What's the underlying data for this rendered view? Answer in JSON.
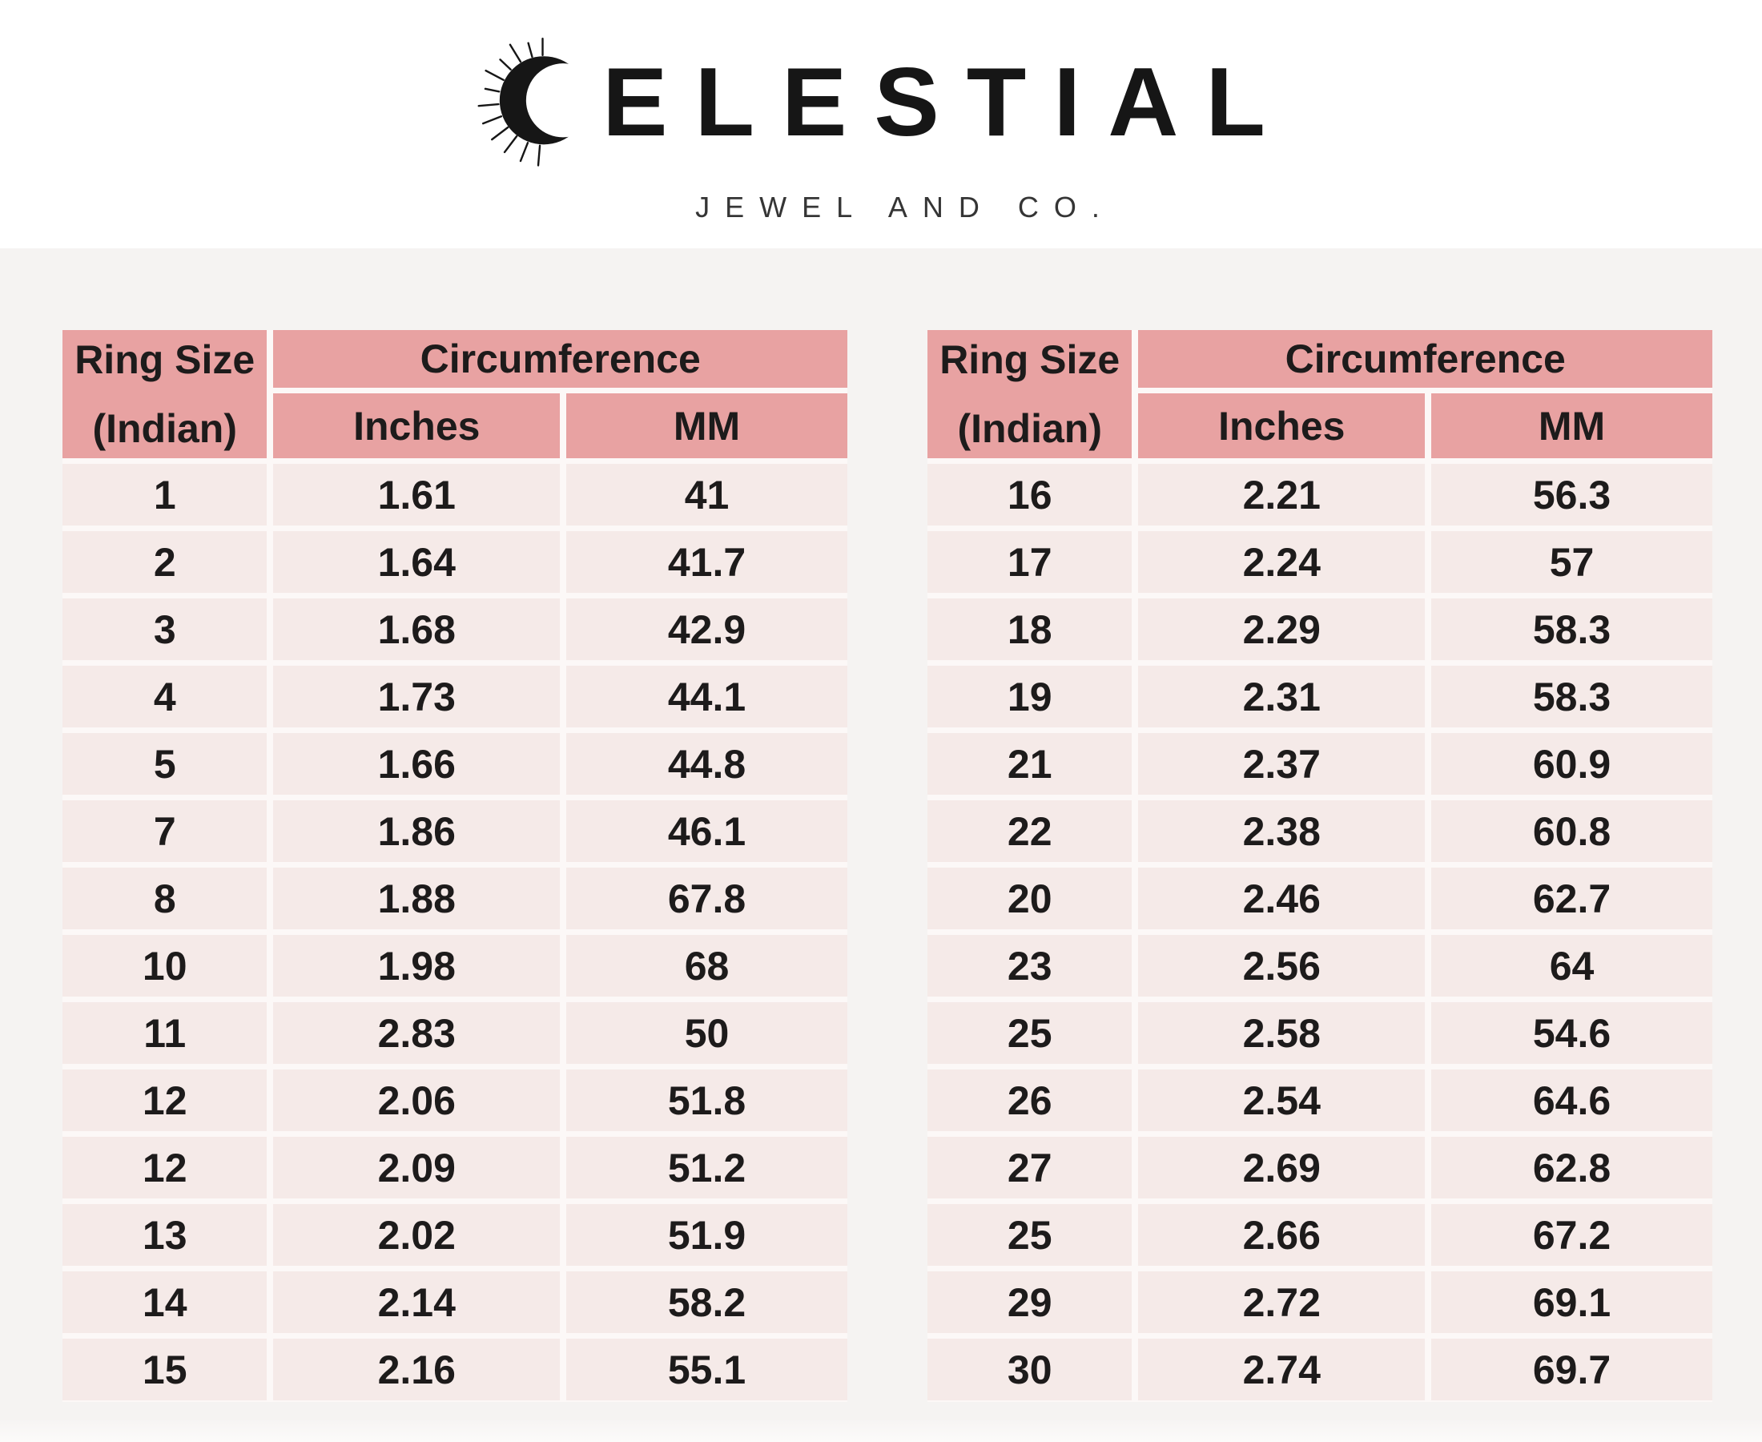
{
  "brand": {
    "name": "CELESTIAL",
    "wordmark_rest": "ELESTIAL",
    "tagline": "JEWEL AND CO."
  },
  "colors": {
    "header_fill": "#e8a2a2",
    "row_fill": "#f5eae8",
    "cell_gap": "#fcf8f7",
    "page_background": "#f5f3f2",
    "band_background": "#ffffff",
    "text": "#1d1b1b"
  },
  "tables": [
    {
      "position": "left",
      "header": {
        "ring_size_line1": "Ring Size",
        "ring_size_line2": "(Indian)",
        "circumference": "Circumference",
        "inches": "Inches",
        "mm": "MM"
      },
      "rows": [
        [
          "1",
          "1.61",
          "41"
        ],
        [
          "2",
          "1.64",
          "41.7"
        ],
        [
          "3",
          "1.68",
          "42.9"
        ],
        [
          "4",
          "1.73",
          "44.1"
        ],
        [
          "5",
          "1.66",
          "44.8"
        ],
        [
          "7",
          "1.86",
          "46.1"
        ],
        [
          "8",
          "1.88",
          "67.8"
        ],
        [
          "10",
          "1.98",
          "68"
        ],
        [
          "11",
          "2.83",
          "50"
        ],
        [
          "12",
          "2.06",
          "51.8"
        ],
        [
          "12",
          "2.09",
          "51.2"
        ],
        [
          "13",
          "2.02",
          "51.9"
        ],
        [
          "14",
          "2.14",
          "58.2"
        ],
        [
          "15",
          "2.16",
          "55.1"
        ]
      ]
    },
    {
      "position": "right",
      "header": {
        "ring_size_line1": "Ring Size",
        "ring_size_line2": "(Indian)",
        "circumference": "Circumference",
        "inches": "Inches",
        "mm": "MM"
      },
      "rows": [
        [
          "16",
          "2.21",
          "56.3"
        ],
        [
          "17",
          "2.24",
          "57"
        ],
        [
          "18",
          "2.29",
          "58.3"
        ],
        [
          "19",
          "2.31",
          "58.3"
        ],
        [
          "21",
          "2.37",
          "60.9"
        ],
        [
          "22",
          "2.38",
          "60.8"
        ],
        [
          "20",
          "2.46",
          "62.7"
        ],
        [
          "23",
          "2.56",
          "64"
        ],
        [
          "25",
          "2.58",
          "54.6"
        ],
        [
          "26",
          "2.54",
          "64.6"
        ],
        [
          "27",
          "2.69",
          "62.8"
        ],
        [
          "25",
          "2.66",
          "67.2"
        ],
        [
          "29",
          "2.72",
          "69.1"
        ],
        [
          "30",
          "2.74",
          "69.7"
        ]
      ]
    }
  ]
}
